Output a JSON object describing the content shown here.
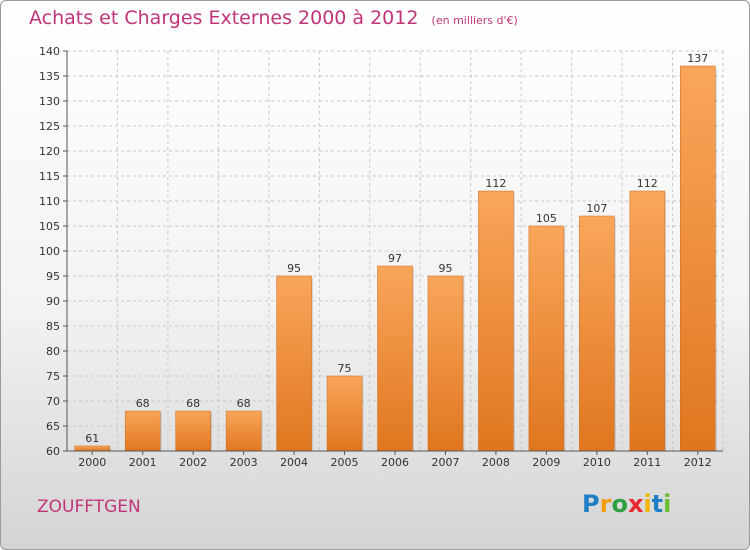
{
  "title": "Achats et Charges Externes 2000 à 2012",
  "unit": "(en milliers d'€)",
  "commune": "ZOUFFTGEN",
  "logo": {
    "letters": [
      "P",
      "r",
      "o",
      "x",
      "i",
      "t",
      "i"
    ],
    "colors": [
      "#1e7fc4",
      "#f39c12",
      "#2ea043",
      "#e8282e",
      "#f5b400",
      "#1e7fc4",
      "#6abf2e"
    ]
  },
  "colors": {
    "bar_top": "#f9a65b",
    "bar_bottom": "#e0761f",
    "title": "#c0357a"
  },
  "chart_data": {
    "type": "bar",
    "categories": [
      "2000",
      "2001",
      "2002",
      "2003",
      "2004",
      "2005",
      "2006",
      "2007",
      "2008",
      "2009",
      "2010",
      "2011",
      "2012"
    ],
    "values": [
      61,
      68,
      68,
      68,
      95,
      75,
      97,
      95,
      112,
      105,
      107,
      112,
      137
    ],
    "title": "Achats et Charges Externes 2000 à 2012",
    "ylim": [
      60,
      140
    ],
    "yticks": [
      60,
      65,
      70,
      75,
      80,
      85,
      90,
      95,
      100,
      105,
      110,
      115,
      120,
      125,
      130,
      135,
      140
    ],
    "grid": true
  }
}
